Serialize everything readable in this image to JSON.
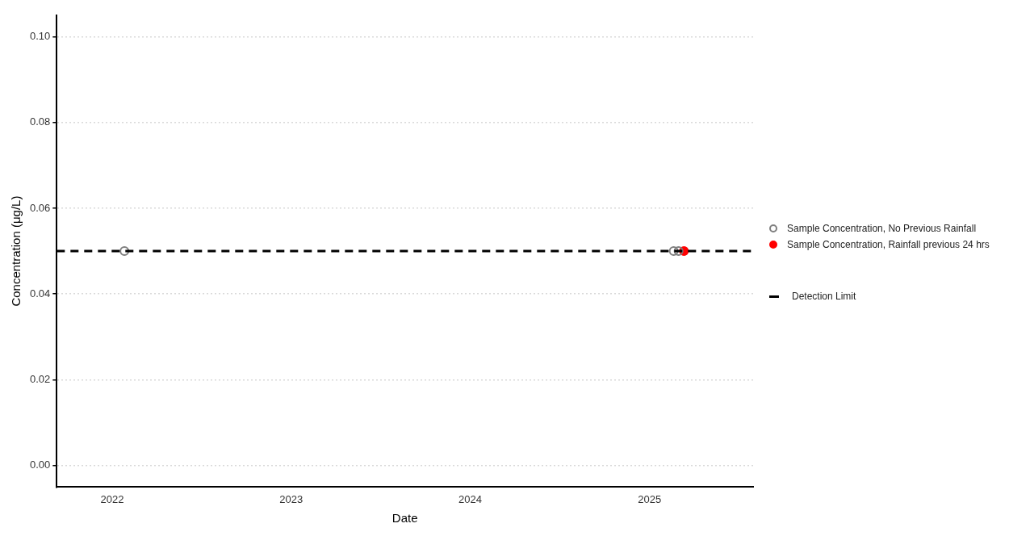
{
  "chart_data": {
    "type": "scatter",
    "xlabel": "Date",
    "ylabel": "Concentration (μg/L)",
    "series": [
      {
        "name": "Sample Concentration, No Previous Rainfall",
        "color": "#7f7f7f",
        "x": [
          "2022-01-26",
          "2025-02-19",
          "2025-03-01"
        ],
        "values": [
          0.05,
          0.05,
          0.05
        ]
      },
      {
        "name": "Sample Concentration, Rainfall previous 24 hrs",
        "color": "#ff0000",
        "x": [
          "2025-03-12"
        ],
        "values": [
          0.05
        ]
      }
    ],
    "ref_lines": [
      {
        "axis": "y",
        "value": 0.05,
        "label": "Detection Limit",
        "color": "#000000",
        "line_style": "dashed"
      }
    ],
    "xlim": [
      "2021-09-10",
      "2025-07-31"
    ],
    "xticks": [
      "2022",
      "2023",
      "2024",
      "2025"
    ],
    "ylim": [
      -0.005,
      0.105
    ],
    "yticks": [
      {
        "value": 0,
        "label": "0.00"
      },
      {
        "value": 0.02,
        "label": "0.02"
      },
      {
        "value": 0.04,
        "label": "0.04"
      },
      {
        "value": 0.06,
        "label": "0.06"
      },
      {
        "value": 0.08,
        "label": "0.08"
      },
      {
        "value": 0.1,
        "label": "0.10"
      }
    ],
    "grid": "y",
    "legend": "right",
    "marker": "circle"
  }
}
